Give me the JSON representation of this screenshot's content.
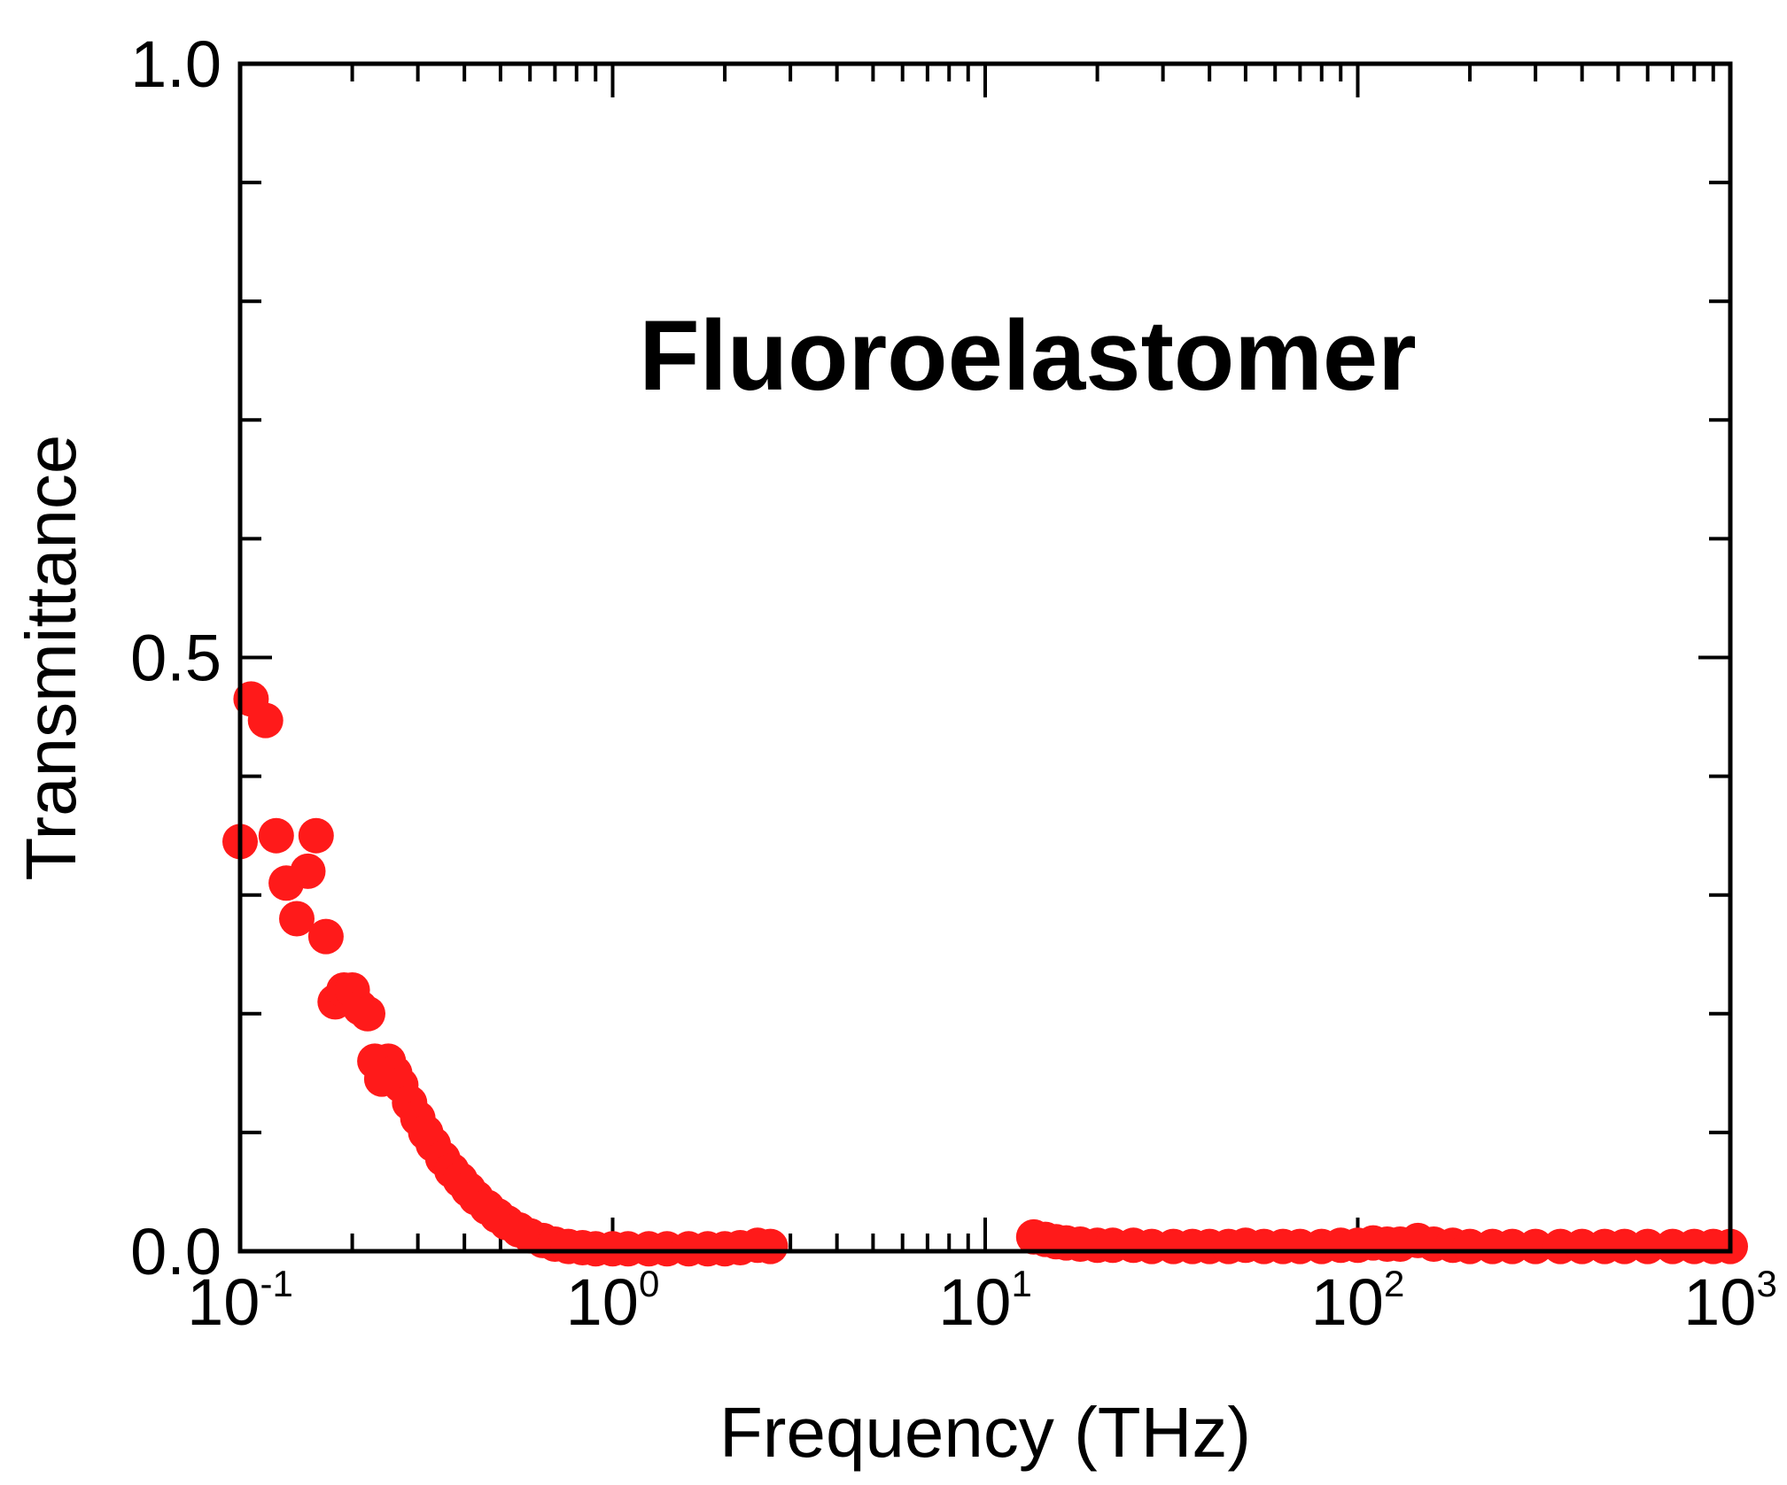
{
  "chart_data": {
    "type": "scatter",
    "xlabel": "Frequency (THz)",
    "ylabel": "Transmittance",
    "xscale": "log",
    "xlim": [
      0.1,
      1000
    ],
    "ylim": [
      0,
      1
    ],
    "grid": false,
    "annotation": "Fluoroelastomer",
    "marker_color": "#ff1a1a",
    "x_ticks": [
      {
        "base": "10",
        "exp": "-1",
        "value": 0.1
      },
      {
        "base": "10",
        "exp": "0",
        "value": 1
      },
      {
        "base": "10",
        "exp": "1",
        "value": 10
      },
      {
        "base": "10",
        "exp": "2",
        "value": 100
      },
      {
        "base": "10",
        "exp": "3",
        "value": 1000
      }
    ],
    "y_ticks": [
      {
        "label": "0.0",
        "value": 0.0
      },
      {
        "label": "0.5",
        "value": 0.5
      },
      {
        "label": "1.0",
        "value": 1.0
      }
    ],
    "series": [
      {
        "points": [
          [
            0.1,
            0.345
          ],
          [
            0.107,
            0.465
          ],
          [
            0.117,
            0.447
          ],
          [
            0.125,
            0.35
          ],
          [
            0.133,
            0.31
          ],
          [
            0.142,
            0.28
          ],
          [
            0.152,
            0.32
          ],
          [
            0.16,
            0.35
          ],
          [
            0.17,
            0.265
          ],
          [
            0.18,
            0.21
          ],
          [
            0.19,
            0.22
          ],
          [
            0.2,
            0.22
          ],
          [
            0.21,
            0.205
          ],
          [
            0.22,
            0.2
          ],
          [
            0.23,
            0.16
          ],
          [
            0.24,
            0.145
          ],
          [
            0.25,
            0.16
          ],
          [
            0.26,
            0.15
          ],
          [
            0.27,
            0.14
          ],
          [
            0.285,
            0.125
          ],
          [
            0.3,
            0.112
          ],
          [
            0.315,
            0.1
          ],
          [
            0.33,
            0.09
          ],
          [
            0.35,
            0.078
          ],
          [
            0.37,
            0.068
          ],
          [
            0.39,
            0.06
          ],
          [
            0.41,
            0.052
          ],
          [
            0.43,
            0.045
          ],
          [
            0.46,
            0.037
          ],
          [
            0.49,
            0.03
          ],
          [
            0.52,
            0.024
          ],
          [
            0.56,
            0.018
          ],
          [
            0.6,
            0.013
          ],
          [
            0.65,
            0.009
          ],
          [
            0.7,
            0.006
          ],
          [
            0.76,
            0.004
          ],
          [
            0.83,
            0.003
          ],
          [
            0.9,
            0.002
          ],
          [
            1.0,
            0.002
          ],
          [
            1.1,
            0.002
          ],
          [
            1.25,
            0.002
          ],
          [
            1.4,
            0.002
          ],
          [
            1.6,
            0.002
          ],
          [
            1.8,
            0.002
          ],
          [
            2.0,
            0.002
          ],
          [
            2.2,
            0.003
          ],
          [
            2.45,
            0.005
          ],
          [
            2.65,
            0.004
          ],
          [
            13.5,
            0.012
          ],
          [
            14.5,
            0.01
          ],
          [
            15.5,
            0.008
          ],
          [
            16.5,
            0.007
          ],
          [
            18.0,
            0.006
          ],
          [
            20.0,
            0.005
          ],
          [
            22.0,
            0.005
          ],
          [
            25.0,
            0.005
          ],
          [
            28.0,
            0.004
          ],
          [
            32.0,
            0.004
          ],
          [
            36.0,
            0.004
          ],
          [
            40.0,
            0.004
          ],
          [
            45.0,
            0.004
          ],
          [
            50.0,
            0.005
          ],
          [
            56.0,
            0.004
          ],
          [
            63.0,
            0.004
          ],
          [
            70.0,
            0.004
          ],
          [
            80.0,
            0.004
          ],
          [
            90.0,
            0.005
          ],
          [
            100.0,
            0.005
          ],
          [
            110.0,
            0.007
          ],
          [
            120.0,
            0.006
          ],
          [
            130.0,
            0.006
          ],
          [
            145.0,
            0.009
          ],
          [
            160.0,
            0.006
          ],
          [
            180.0,
            0.005
          ],
          [
            200.0,
            0.004
          ],
          [
            230.0,
            0.004
          ],
          [
            260.0,
            0.004
          ],
          [
            300.0,
            0.004
          ],
          [
            350.0,
            0.004
          ],
          [
            400.0,
            0.004
          ],
          [
            460.0,
            0.004
          ],
          [
            520.0,
            0.004
          ],
          [
            600.0,
            0.004
          ],
          [
            700.0,
            0.004
          ],
          [
            800.0,
            0.004
          ],
          [
            900.0,
            0.004
          ],
          [
            1000.0,
            0.004
          ]
        ]
      }
    ]
  }
}
